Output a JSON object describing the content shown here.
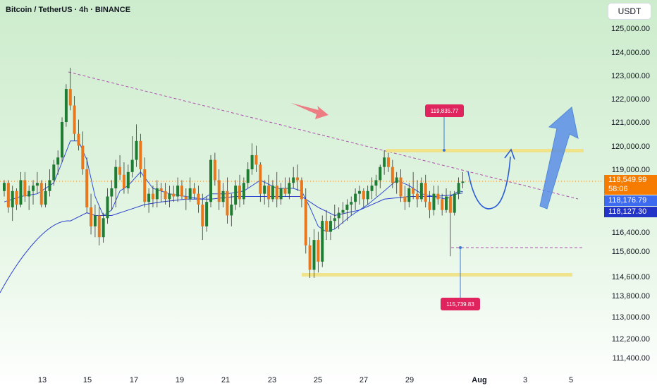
{
  "header": {
    "title": "Bitcoin / TetherUS · 4h · BINANCE",
    "currency": "USDT"
  },
  "colors": {
    "bull": "#1e7d32",
    "bear": "#e8781e",
    "ma_fast": "#3050d8",
    "ma_slow": "#2a3fd0",
    "trendline": "#b050b0",
    "zone": "#f2df7a",
    "callout": "#e0245e",
    "arrow": "#3a78d8",
    "red_arrow": "#f0707a"
  },
  "chart_data": {
    "type": "candlestick",
    "y_ticks": [
      "125,000.00",
      "124,000.00",
      "123,000.00",
      "122,000.00",
      "121,000.00",
      "120,000.00",
      "119,000.00",
      "116,400.00",
      "115,600.00",
      "114,600.00",
      "113,800.00",
      "113,000.00",
      "112,200.00",
      "111,400.00"
    ],
    "x_ticks": [
      "13",
      "15",
      "17",
      "19",
      "21",
      "23",
      "25",
      "27",
      "29",
      "Aug",
      "3",
      "5"
    ],
    "price_tags": {
      "current": {
        "price": "118,549.99",
        "countdown": "58:06"
      },
      "ma_fast": "118,176.79",
      "ma_slow": "118,127.30"
    },
    "annotations": {
      "resistance_label": "119,835.77",
      "support_label": "115,739.83"
    },
    "candles": [
      [
        118.2,
        118.6,
        118.0,
        118.5
      ],
      [
        118.5,
        118.6,
        117.4,
        117.6
      ],
      [
        117.6,
        118.4,
        117.1,
        118.2
      ],
      [
        118.2,
        118.3,
        117.5,
        117.7
      ],
      [
        117.7,
        118.9,
        117.6,
        118.6
      ],
      [
        118.6,
        118.9,
        117.8,
        118.0
      ],
      [
        118.0,
        118.4,
        117.5,
        118.2
      ],
      [
        118.2,
        118.6,
        117.7,
        118.4
      ],
      [
        118.4,
        118.9,
        118.1,
        118.5
      ],
      [
        118.5,
        118.6,
        117.6,
        117.7
      ],
      [
        117.7,
        118.5,
        117.6,
        118.2
      ],
      [
        118.2,
        119.0,
        118.0,
        118.6
      ],
      [
        118.6,
        119.4,
        118.4,
        119.2
      ],
      [
        119.2,
        119.8,
        118.8,
        119.5
      ],
      [
        119.5,
        121.2,
        119.3,
        121.0
      ],
      [
        121.0,
        122.6,
        120.8,
        122.4
      ],
      [
        122.4,
        123.3,
        121.5,
        121.7
      ],
      [
        121.7,
        122.1,
        120.2,
        120.5
      ],
      [
        120.5,
        121.1,
        119.8,
        120.0
      ],
      [
        120.0,
        120.6,
        118.8,
        119.0
      ],
      [
        119.0,
        119.5,
        117.4,
        117.6
      ],
      [
        117.6,
        118.1,
        116.6,
        116.9
      ],
      [
        116.9,
        117.7,
        116.5,
        117.3
      ],
      [
        117.3,
        117.6,
        116.2,
        116.5
      ],
      [
        116.5,
        117.4,
        116.3,
        117.2
      ],
      [
        117.2,
        118.3,
        117.0,
        118.0
      ],
      [
        118.0,
        118.6,
        117.5,
        118.3
      ],
      [
        118.3,
        119.4,
        117.6,
        119.1
      ],
      [
        119.1,
        119.6,
        118.6,
        118.8
      ],
      [
        118.8,
        119.3,
        118.1,
        118.3
      ],
      [
        118.3,
        119.2,
        118.1,
        118.9
      ],
      [
        118.9,
        120.4,
        118.7,
        119.4
      ],
      [
        119.4,
        120.9,
        119.1,
        120.2
      ],
      [
        120.2,
        120.5,
        118.7,
        119.0
      ],
      [
        119.0,
        119.5,
        117.6,
        117.8
      ],
      [
        117.8,
        118.3,
        117.4,
        118.1
      ],
      [
        118.1,
        118.4,
        117.6,
        117.9
      ],
      [
        117.9,
        118.6,
        117.6,
        118.3
      ],
      [
        118.3,
        118.5,
        117.8,
        118.2
      ],
      [
        118.2,
        118.5,
        117.7,
        117.9
      ],
      [
        117.9,
        118.4,
        117.6,
        118.1
      ],
      [
        118.1,
        118.4,
        117.8,
        118.0
      ],
      [
        118.0,
        118.7,
        117.8,
        118.4
      ],
      [
        118.4,
        118.6,
        117.9,
        118.0
      ],
      [
        118.0,
        118.3,
        117.5,
        117.9
      ],
      [
        117.9,
        118.7,
        117.8,
        118.3
      ],
      [
        118.3,
        118.5,
        117.9,
        118.1
      ],
      [
        118.1,
        118.4,
        117.4,
        117.7
      ],
      [
        117.7,
        118.1,
        116.4,
        116.9
      ],
      [
        116.9,
        118.0,
        116.7,
        117.8
      ],
      [
        117.8,
        119.6,
        117.6,
        119.4
      ],
      [
        119.4,
        119.7,
        118.4,
        118.6
      ],
      [
        118.6,
        119.0,
        117.5,
        117.8
      ],
      [
        117.8,
        118.5,
        117.6,
        118.2
      ],
      [
        118.2,
        118.7,
        117.0,
        117.3
      ],
      [
        117.3,
        118.1,
        116.9,
        117.7
      ],
      [
        117.7,
        118.6,
        117.5,
        118.4
      ],
      [
        118.4,
        118.8,
        117.6,
        117.9
      ],
      [
        117.9,
        118.7,
        117.7,
        118.5
      ],
      [
        118.5,
        119.3,
        118.3,
        119.0
      ],
      [
        119.0,
        120.1,
        118.8,
        119.6
      ],
      [
        119.6,
        120.0,
        118.9,
        119.2
      ],
      [
        119.2,
        119.3,
        117.8,
        118.1
      ],
      [
        118.1,
        118.6,
        117.7,
        118.4
      ],
      [
        118.4,
        118.8,
        117.6,
        117.9
      ],
      [
        117.9,
        118.6,
        117.8,
        118.4
      ],
      [
        118.4,
        118.9,
        117.6,
        117.9
      ],
      [
        117.9,
        118.5,
        117.7,
        118.3
      ],
      [
        118.3,
        118.7,
        118.0,
        118.1
      ],
      [
        118.1,
        118.7,
        117.9,
        118.5
      ],
      [
        118.5,
        119.1,
        118.3,
        118.7
      ],
      [
        118.7,
        119.2,
        118.2,
        118.6
      ],
      [
        118.6,
        118.7,
        117.6,
        117.9
      ],
      [
        117.9,
        118.3,
        115.9,
        116.2
      ],
      [
        116.2,
        116.5,
        115.0,
        115.3
      ],
      [
        115.3,
        116.8,
        115.0,
        116.4
      ],
      [
        116.4,
        116.7,
        115.2,
        115.6
      ],
      [
        115.6,
        117.3,
        115.4,
        117.1
      ],
      [
        117.1,
        117.5,
        116.4,
        116.7
      ],
      [
        116.7,
        117.3,
        116.4,
        117.1
      ],
      [
        117.1,
        117.7,
        116.8,
        117.2
      ],
      [
        117.2,
        117.6,
        116.8,
        117.4
      ],
      [
        117.4,
        117.8,
        117.0,
        117.5
      ],
      [
        117.5,
        117.9,
        117.1,
        117.7
      ],
      [
        117.7,
        118.0,
        117.3,
        117.8
      ],
      [
        117.8,
        118.3,
        117.5,
        118.1
      ],
      [
        118.1,
        118.4,
        117.7,
        118.2
      ],
      [
        118.2,
        118.3,
        117.6,
        117.9
      ],
      [
        117.9,
        118.4,
        117.7,
        118.2
      ],
      [
        118.2,
        118.7,
        117.9,
        118.4
      ],
      [
        118.4,
        118.8,
        118.0,
        118.6
      ],
      [
        118.6,
        119.2,
        118.3,
        119.1
      ],
      [
        119.1,
        119.8,
        118.8,
        119.5
      ],
      [
        119.5,
        119.7,
        118.9,
        119.1
      ],
      [
        119.1,
        119.4,
        118.3,
        118.5
      ],
      [
        118.5,
        118.9,
        118.1,
        118.7
      ],
      [
        118.7,
        119.0,
        117.8,
        118.0
      ],
      [
        118.0,
        118.4,
        117.5,
        117.8
      ],
      [
        117.8,
        118.5,
        117.6,
        118.3
      ],
      [
        118.3,
        118.9,
        117.9,
        118.1
      ],
      [
        118.1,
        118.6,
        117.6,
        117.9
      ],
      [
        117.9,
        118.7,
        117.8,
        118.5
      ],
      [
        118.5,
        118.8,
        117.6,
        117.8
      ],
      [
        117.8,
        118.2,
        117.2,
        117.5
      ],
      [
        117.5,
        118.4,
        117.3,
        118.1
      ],
      [
        118.1,
        118.4,
        117.7,
        117.9
      ],
      [
        117.9,
        118.1,
        117.3,
        117.5
      ],
      [
        117.5,
        118.3,
        117.4,
        118.0
      ],
      [
        118.0,
        118.2,
        115.8,
        117.4
      ],
      [
        117.4,
        118.2,
        117.3,
        118.1
      ],
      [
        118.1,
        118.7,
        117.9,
        118.5
      ],
      [
        118.5,
        118.9,
        118.3,
        118.55
      ]
    ],
    "ma_fast": [
      [
        0,
        117.8
      ],
      [
        4,
        118.0
      ],
      [
        8,
        118.1
      ],
      [
        12,
        118.5
      ],
      [
        14,
        119.3
      ],
      [
        16,
        120.2
      ],
      [
        18,
        120.2
      ],
      [
        20,
        119.4
      ],
      [
        22,
        118.0
      ],
      [
        24,
        117.3
      ],
      [
        26,
        117.5
      ],
      [
        28,
        118.2
      ],
      [
        30,
        118.4
      ],
      [
        33,
        118.9
      ],
      [
        36,
        118.3
      ],
      [
        40,
        118.1
      ],
      [
        44,
        118.0
      ],
      [
        48,
        117.9
      ],
      [
        50,
        118.1
      ],
      [
        54,
        118.1
      ],
      [
        58,
        118.2
      ],
      [
        62,
        118.6
      ],
      [
        66,
        118.3
      ],
      [
        70,
        118.3
      ],
      [
        72,
        118.2
      ],
      [
        74,
        117.6
      ],
      [
        76,
        116.9
      ],
      [
        78,
        116.7
      ],
      [
        80,
        116.8
      ],
      [
        84,
        117.3
      ],
      [
        88,
        117.7
      ],
      [
        92,
        118.2
      ],
      [
        95,
        118.6
      ],
      [
        98,
        118.4
      ],
      [
        101,
        118.1
      ],
      [
        104,
        118.0
      ],
      [
        107,
        117.9
      ],
      [
        110,
        118.2
      ],
      [
        111,
        118.18
      ]
    ],
    "ma_slow": [
      [
        0,
        113.7
      ],
      [
        4,
        114.7
      ],
      [
        8,
        115.6
      ],
      [
        12,
        116.4
      ],
      [
        16,
        117.1
      ],
      [
        20,
        117.4
      ],
      [
        22,
        117.3
      ],
      [
        26,
        117.3
      ],
      [
        30,
        117.5
      ],
      [
        34,
        117.7
      ],
      [
        38,
        117.8
      ],
      [
        44,
        117.9
      ],
      [
        50,
        117.9
      ],
      [
        56,
        118.0
      ],
      [
        62,
        118.0
      ],
      [
        68,
        118.0
      ],
      [
        72,
        118.0
      ],
      [
        76,
        117.6
      ],
      [
        80,
        117.3
      ],
      [
        86,
        117.5
      ],
      [
        92,
        117.9
      ],
      [
        98,
        118.0
      ],
      [
        104,
        118.0
      ],
      [
        108,
        118.05
      ],
      [
        111,
        118.13
      ]
    ]
  }
}
